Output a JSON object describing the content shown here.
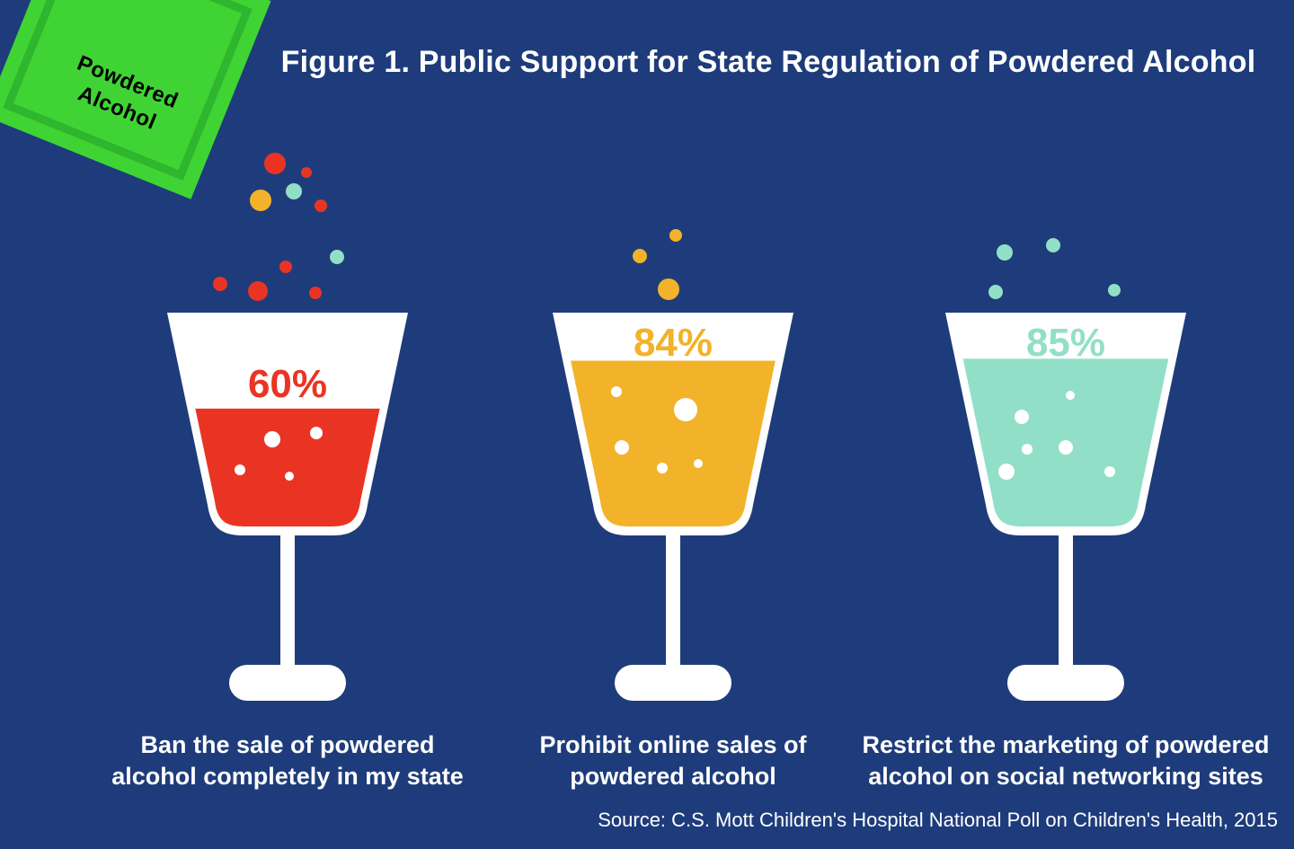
{
  "title": "Figure 1. Public Support for State Regulation of Powdered Alcohol",
  "source": "Source: C.S. Mott Children's Hospital National Poll on Children's Health, 2015",
  "packet": {
    "line1": "Powdered",
    "line2": "Alcohol"
  },
  "colors": {
    "background": "#1e3c7b",
    "glass_white": "#ffffff",
    "packet_green": "#3fd434",
    "packet_green_dark": "#2eb62e",
    "red": "#ea3423",
    "yellow": "#f2b32a",
    "teal": "#92dfc7",
    "text": "#ffffff"
  },
  "chart_data": {
    "type": "bar",
    "subtype": "pictograph-glasses",
    "title": "Figure 1. Public Support for State Regulation of Powdered Alcohol",
    "categories": [
      "Ban the sale of powdered alcohol completely in my state",
      "Prohibit online sales of powdered alcohol",
      "Restrict the marketing of powdered alcohol on social networking sites"
    ],
    "values": [
      60,
      84,
      85
    ],
    "unit": "%",
    "ylim": [
      0,
      100
    ],
    "source": "Source: C.S. Mott Children's Hospital National Poll on Children's Health, 2015",
    "items": [
      {
        "pct_label": "60%",
        "value": 60,
        "color_key": "red",
        "label": "Ban the sale of powdered\nalcohol completely in my state"
      },
      {
        "pct_label": "84%",
        "value": 84,
        "color_key": "yellow",
        "label": "Prohibit online sales of\npowdered alcohol"
      },
      {
        "pct_label": "85%",
        "value": 85,
        "color_key": "teal",
        "label": "Restrict the marketing of powdered\nalcohol on social networking sites"
      }
    ]
  }
}
